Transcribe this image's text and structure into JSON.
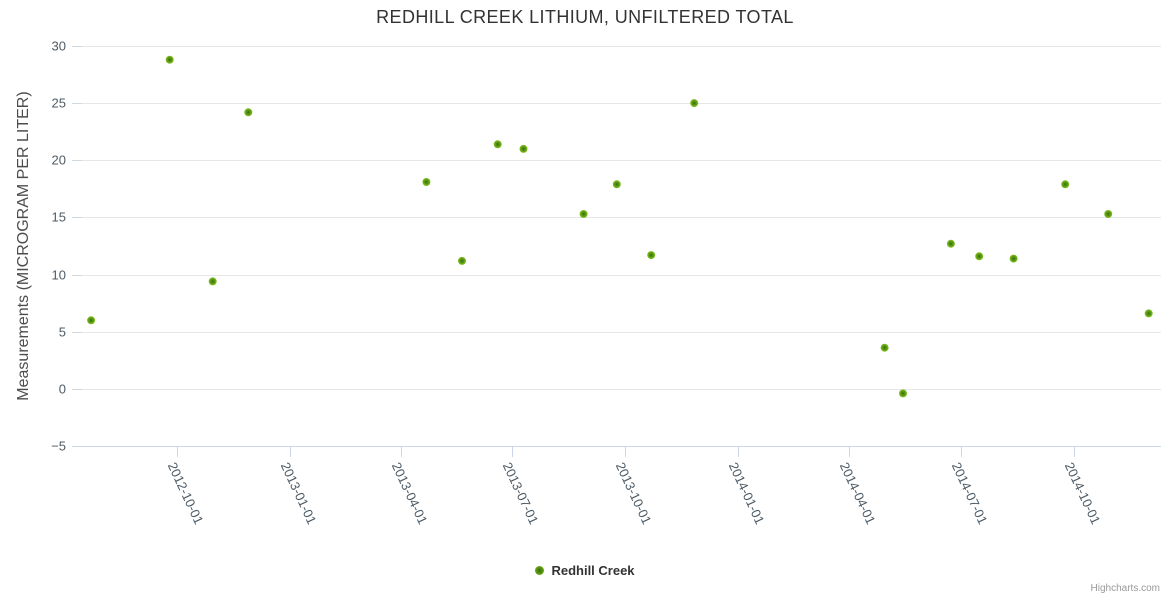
{
  "chart": {
    "title": "REDHILL CREEK LITHIUM, UNFILTERED TOTAL",
    "y_axis_title": "Measurements (MICROGRAM PER LITER)",
    "legend_label": "Redhill Creek",
    "credits": "Highcharts.com"
  },
  "chart_data": {
    "type": "scatter",
    "title": "REDHILL CREEK LITHIUM, UNFILTERED TOTAL",
    "xlabel": "",
    "ylabel": "Measurements (MICROGRAM PER LITER)",
    "ylim": [
      -5,
      30
    ],
    "y_ticks": [
      30,
      25,
      20,
      15,
      10,
      5,
      0,
      -5
    ],
    "x_ticks": [
      "2012-10-01",
      "2013-01-01",
      "2013-04-01",
      "2013-07-01",
      "2013-10-01",
      "2014-01-01",
      "2014-04-01",
      "2014-07-01",
      "2014-10-01"
    ],
    "x_range": [
      "2012-07-14",
      "2014-12-11"
    ],
    "grid": "horizontal",
    "legend_position": "bottom-center",
    "series": [
      {
        "name": "Redhill Creek",
        "marker_color": "#5d9a14",
        "points": [
          {
            "x": "2012-07-23",
            "y": 6.0
          },
          {
            "x": "2012-09-25",
            "y": 28.8
          },
          {
            "x": "2012-10-30",
            "y": 9.4
          },
          {
            "x": "2012-11-28",
            "y": 24.2
          },
          {
            "x": "2013-04-22",
            "y": 18.1
          },
          {
            "x": "2013-05-21",
            "y": 11.2
          },
          {
            "x": "2013-06-19",
            "y": 21.4
          },
          {
            "x": "2013-07-10",
            "y": 21.0
          },
          {
            "x": "2013-08-28",
            "y": 15.3
          },
          {
            "x": "2013-09-24",
            "y": 17.9
          },
          {
            "x": "2013-10-22",
            "y": 11.7
          },
          {
            "x": "2013-11-26",
            "y": 25.0
          },
          {
            "x": "2014-04-30",
            "y": 3.6
          },
          {
            "x": "2014-05-15",
            "y": -0.4
          },
          {
            "x": "2014-06-23",
            "y": 12.7
          },
          {
            "x": "2014-07-16",
            "y": 11.6
          },
          {
            "x": "2014-08-13",
            "y": 11.4
          },
          {
            "x": "2014-09-24",
            "y": 17.9
          },
          {
            "x": "2014-10-29",
            "y": 15.3
          },
          {
            "x": "2014-12-01",
            "y": 6.6
          }
        ]
      }
    ]
  },
  "colors": {
    "title": "#333333",
    "axis_label": "#4e5b65",
    "axis_title": "#4d4d4d",
    "grid": "#e6e6e6",
    "tick": "#ccd6eb",
    "y_tick": "#d0d7de",
    "marker_center": "#356f0a",
    "marker_mid": "#5d9a14",
    "marker_edge": "#86c225",
    "legend_text": "#333333",
    "credits": "#999999"
  }
}
